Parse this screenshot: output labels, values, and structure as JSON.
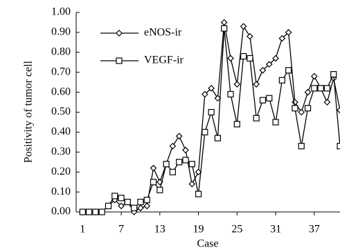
{
  "chart_data": {
    "type": "line",
    "y_label": "Positivity of tumor cell",
    "x_label": "Case",
    "x": [
      1,
      2,
      3,
      4,
      5,
      6,
      7,
      8,
      9,
      10,
      11,
      12,
      13,
      14,
      15,
      16,
      17,
      18,
      19,
      20,
      21,
      22,
      23,
      24,
      25,
      26,
      27,
      28,
      29,
      30,
      31,
      32,
      33,
      34,
      35,
      36,
      37,
      38,
      39,
      40,
      41
    ],
    "series": [
      {
        "name": "eNOS-ir",
        "color": "#000000",
        "marker": "diamond",
        "values": [
          0,
          0,
          0,
          0,
          0.03,
          0.06,
          0.03,
          0.05,
          0.0,
          0.02,
          0.03,
          0.22,
          0.15,
          0.24,
          0.33,
          0.38,
          0.31,
          0.14,
          0.2,
          0.59,
          0.62,
          0.57,
          0.95,
          0.77,
          0.64,
          0.93,
          0.88,
          0.64,
          0.71,
          0.74,
          0.77,
          0.87,
          0.9,
          0.55,
          0.5,
          0.6,
          0.68,
          0.62,
          0.55,
          0.67,
          0.51
        ]
      },
      {
        "name": "VEGF-ir",
        "color": "#000000",
        "marker": "square",
        "values": [
          0,
          0,
          0,
          0,
          0.03,
          0.08,
          0.07,
          0.05,
          0.02,
          0.05,
          0.06,
          0.15,
          0.11,
          0.24,
          0.2,
          0.25,
          0.26,
          0.24,
          0.09,
          0.4,
          0.5,
          0.37,
          0.92,
          0.59,
          0.44,
          0.78,
          0.77,
          0.47,
          0.56,
          0.57,
          0.45,
          0.66,
          0.71,
          0.52,
          0.33,
          0.52,
          0.62,
          0.62,
          0.62,
          0.69,
          0.33
        ]
      }
    ],
    "xlim": [
      0,
      41
    ],
    "xticks": [
      1,
      7,
      13,
      19,
      25,
      31,
      37
    ],
    "ylim": [
      0,
      1
    ],
    "yticks": [
      {
        "value": 0,
        "label": "0.00"
      },
      {
        "value": 0.1,
        "label": "0.10"
      },
      {
        "value": 0.2,
        "label": "0.20"
      },
      {
        "value": 0.3,
        "label": "0.30"
      },
      {
        "value": 0.4,
        "label": "0.40"
      },
      {
        "value": 0.5,
        "label": "0.50"
      },
      {
        "value": 0.6,
        "label": "0.60"
      },
      {
        "value": 0.7,
        "label": "0.70"
      },
      {
        "value": 0.8,
        "label": "0.80"
      },
      {
        "value": 0.9,
        "label": "0.90"
      },
      {
        "value": 1,
        "label": "1.00"
      }
    ],
    "legend": "upper left",
    "grid": false
  }
}
